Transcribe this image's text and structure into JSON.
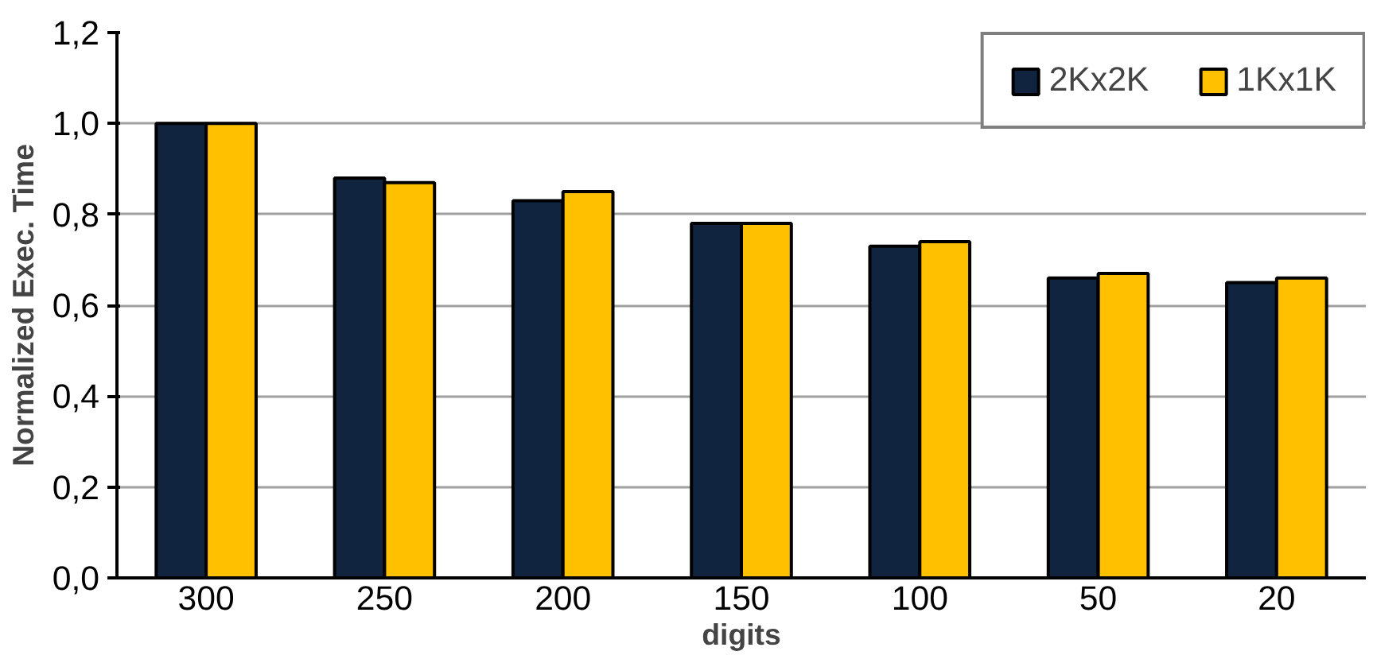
{
  "chart_data": {
    "type": "bar",
    "xlabel": "digits",
    "ylabel": "Normalized Exec. Time",
    "categories": [
      "300",
      "250",
      "200",
      "150",
      "100",
      "50",
      "20"
    ],
    "series": [
      {
        "name": "2Kx2K",
        "color": "#10243f",
        "values": [
          1.0,
          0.88,
          0.83,
          0.78,
          0.73,
          0.66,
          0.65
        ]
      },
      {
        "name": "1Kx1K",
        "color": "#ffc000",
        "values": [
          1.0,
          0.87,
          0.85,
          0.78,
          0.74,
          0.67,
          0.66
        ]
      }
    ],
    "ylim": [
      0,
      1.2
    ],
    "yticks": [
      {
        "value": 0,
        "label": "0,0"
      },
      {
        "value": 0.2,
        "label": "0,2"
      },
      {
        "value": 0.4,
        "label": "0,4"
      },
      {
        "value": 0.6,
        "label": "0,6"
      },
      {
        "value": 0.8,
        "label": "0,8"
      },
      {
        "value": 1.0,
        "label": "1,0"
      },
      {
        "value": 1.2,
        "label": "1,2"
      }
    ],
    "grid": "y",
    "legend": "top right"
  }
}
